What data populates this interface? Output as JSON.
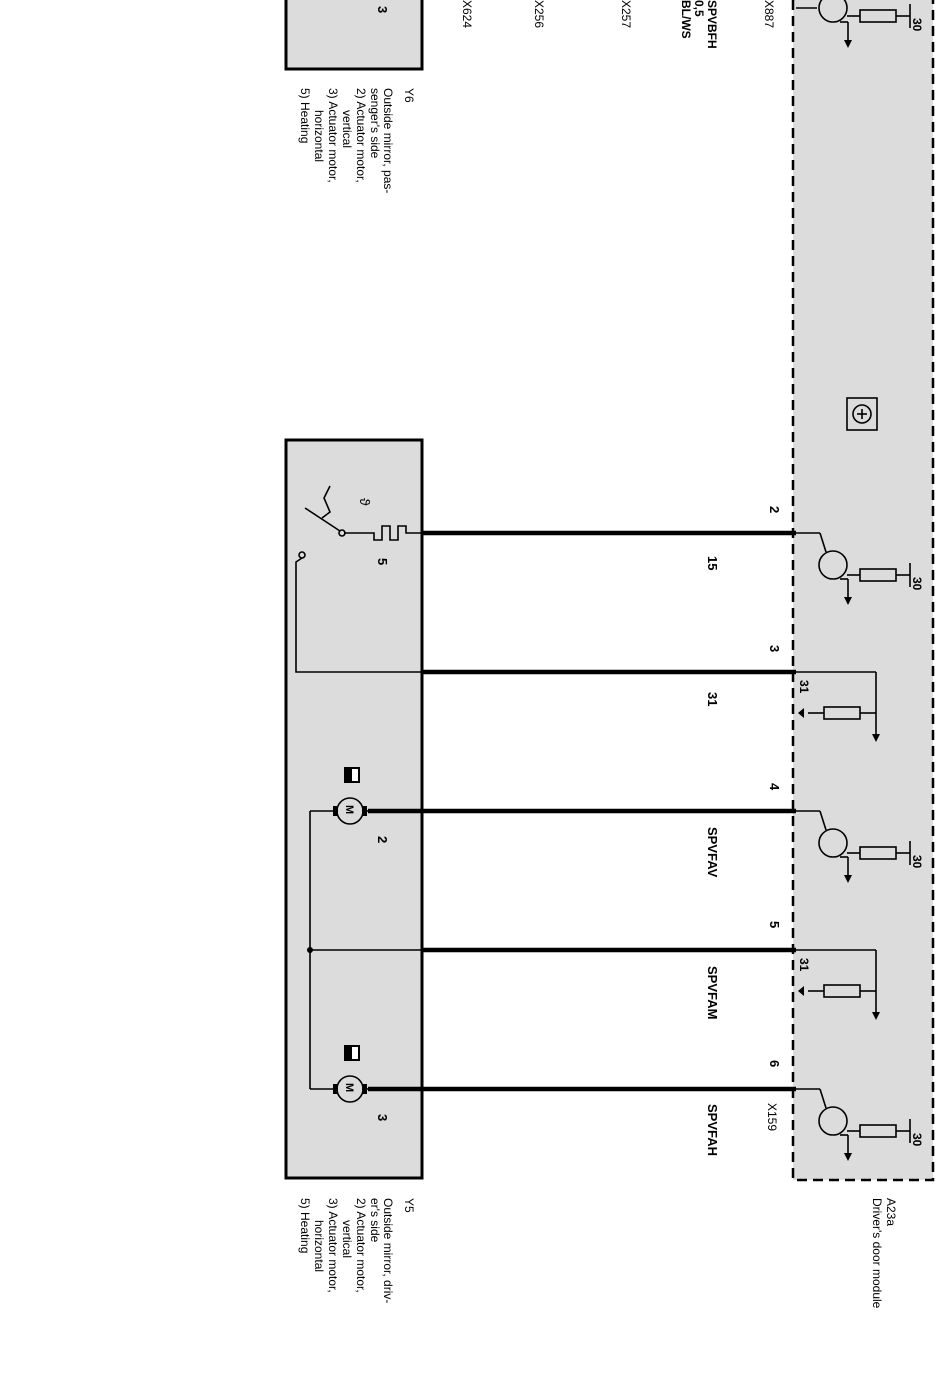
{
  "module": {
    "id": "A23a",
    "name": "Driver's door module",
    "connector": "X159",
    "supply_label": "30",
    "ground_label": "31",
    "bottom_connector": "X887"
  },
  "component_y5": {
    "id": "Y5",
    "description": [
      "Outside mirror, driv-",
      "er's side",
      "2) Actuator motor,",
      "vertical",
      "3) Actuator motor,",
      "horizontal",
      "5) Heating"
    ],
    "motor_symbol": "M",
    "internal_pins": [
      "5",
      "2",
      "3"
    ]
  },
  "component_y6": {
    "id": "Y6",
    "description": [
      "Outside mirror, pas-",
      "senger's side",
      "2) Actuator motor,",
      "vertical",
      "3) Actuator motor,",
      "horizontal",
      "5) Heating"
    ],
    "internal_pin": "3"
  },
  "thermostat_symbol": "ϑ",
  "wires": [
    {
      "pin": "2",
      "label": "15"
    },
    {
      "pin": "3",
      "label": "31"
    },
    {
      "pin": "4",
      "label": "SPVFAV"
    },
    {
      "pin": "5",
      "label": "SPVFAM"
    },
    {
      "pin": "6",
      "label": "SPVFAH"
    }
  ],
  "y6_wire": {
    "label": "SPVBFH",
    "size": "0,5",
    "color": "BL/WS"
  },
  "connectors_cut": [
    "X257",
    "X256",
    "X624"
  ]
}
